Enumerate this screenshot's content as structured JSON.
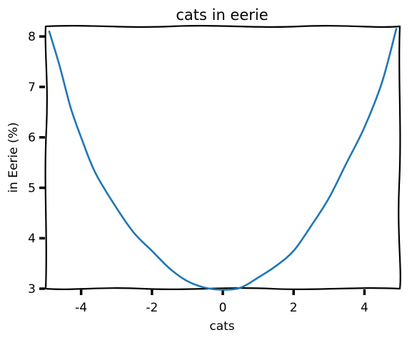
{
  "chart_data": {
    "type": "line",
    "title": "cats in eerie",
    "xlabel": "cats",
    "ylabel": "in Eerie (%)",
    "xlim": [
      -5,
      5
    ],
    "ylim": [
      3,
      8.2
    ],
    "xticks": [
      -4,
      -2,
      0,
      2,
      4
    ],
    "xtick_labels": [
      "-4",
      "-2",
      "0",
      "2",
      "4"
    ],
    "yticks": [
      3,
      4,
      5,
      6,
      7,
      8
    ],
    "ytick_labels": [
      "3",
      "4",
      "5",
      "6",
      "7",
      "8"
    ],
    "grid": false,
    "style": "xkcd",
    "series": [
      {
        "color": "#1f77b4",
        "x": [
          -4.9,
          -4.6,
          -4.3,
          -4.0,
          -3.6,
          -3.0,
          -2.5,
          -2.0,
          -1.5,
          -1.0,
          -0.5,
          0.0,
          0.5,
          1.0,
          1.5,
          2.0,
          2.5,
          3.0,
          3.5,
          4.0,
          4.5,
          4.9
        ],
        "y": [
          8.1,
          7.4,
          6.6,
          6.0,
          5.3,
          4.6,
          4.1,
          3.75,
          3.4,
          3.15,
          3.02,
          2.98,
          3.02,
          3.22,
          3.45,
          3.75,
          4.25,
          4.8,
          5.5,
          6.2,
          7.1,
          8.15
        ]
      }
    ]
  }
}
